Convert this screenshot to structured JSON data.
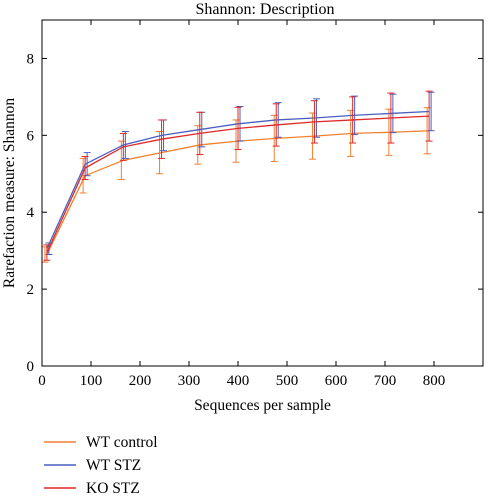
{
  "chart_data": {
    "type": "line",
    "title": "Shannon: Description",
    "xlabel": "Sequences per sample",
    "ylabel": "Rarefaction measure: Shannon",
    "xlim": [
      0,
      900
    ],
    "ylim": [
      0,
      9
    ],
    "xticks": [
      0,
      100,
      200,
      300,
      400,
      500,
      600,
      700,
      800
    ],
    "yticks": [
      0,
      2,
      4,
      6,
      8
    ],
    "grid": false,
    "legend_position": "bottom-left, below plot",
    "x": [
      10,
      88,
      166,
      244,
      322,
      400,
      478,
      556,
      634,
      712,
      790
    ],
    "series": [
      {
        "name": "WT control",
        "color": "#f08030",
        "values": [
          2.9,
          4.95,
          5.35,
          5.55,
          5.75,
          5.85,
          5.92,
          5.98,
          6.05,
          6.08,
          6.12
        ],
        "errors": [
          0.2,
          0.45,
          0.5,
          0.55,
          0.5,
          0.55,
          0.6,
          0.6,
          0.6,
          0.6,
          0.6
        ]
      },
      {
        "name": "WT STZ",
        "color": "#4a5fc0",
        "values": [
          3.05,
          5.25,
          5.75,
          6.0,
          6.15,
          6.3,
          6.4,
          6.45,
          6.52,
          6.57,
          6.62
        ],
        "errors": [
          0.15,
          0.3,
          0.35,
          0.4,
          0.45,
          0.45,
          0.45,
          0.5,
          0.5,
          0.5,
          0.5
        ]
      },
      {
        "name": "KO STZ",
        "color": "#e02828",
        "values": [
          2.95,
          5.15,
          5.7,
          5.9,
          6.05,
          6.18,
          6.27,
          6.35,
          6.4,
          6.45,
          6.5
        ],
        "errors": [
          0.2,
          0.3,
          0.35,
          0.5,
          0.55,
          0.55,
          0.55,
          0.55,
          0.6,
          0.65,
          0.65
        ]
      }
    ]
  }
}
